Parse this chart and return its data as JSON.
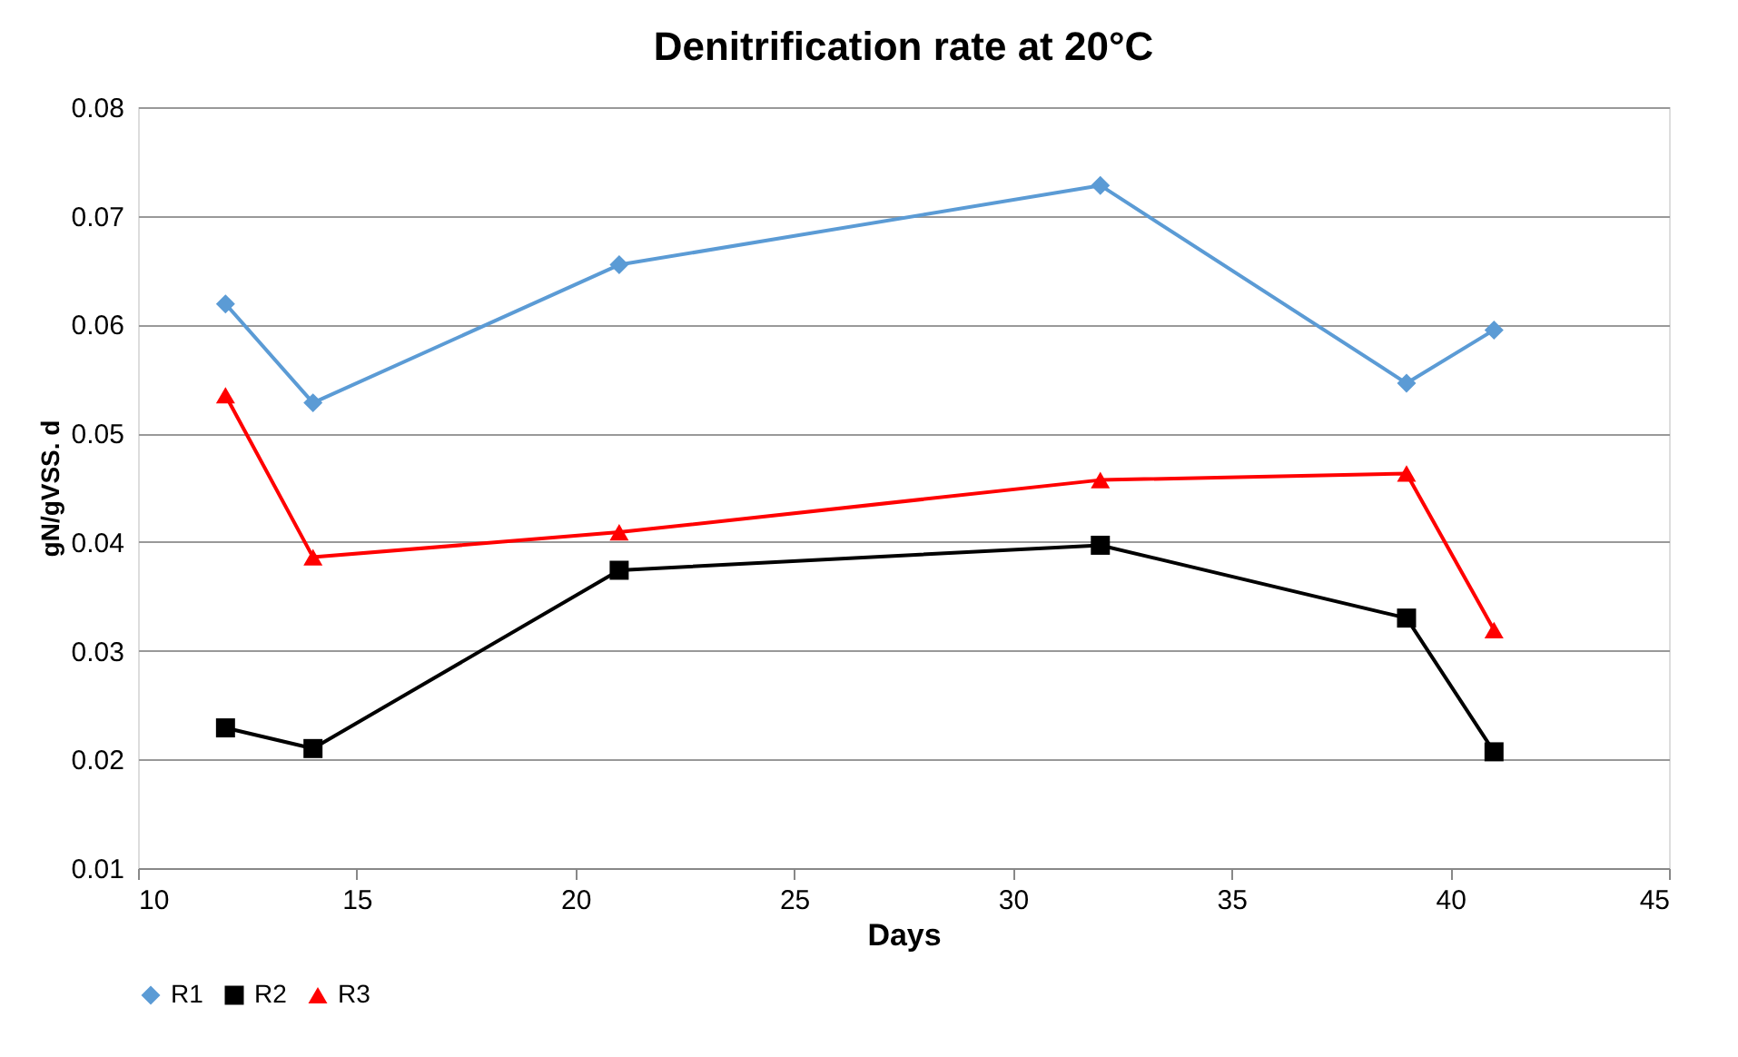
{
  "chart_data": {
    "type": "line",
    "title": "Denitrification rate at 20°C",
    "xlabel": "Days",
    "ylabel": "gN/gVSS. d",
    "x": [
      12,
      14,
      21,
      32,
      39,
      41
    ],
    "series": [
      {
        "name": "R1",
        "color": "#5b9bd5",
        "marker": "diamond",
        "values": [
          0.0619,
          0.0528,
          0.0655,
          0.0728,
          0.0546,
          0.0595
        ]
      },
      {
        "name": "R2",
        "color": "#000000",
        "marker": "square",
        "values": [
          0.0229,
          0.021,
          0.0374,
          0.0397,
          0.033,
          0.0207
        ]
      },
      {
        "name": "R3",
        "color": "#ff0000",
        "marker": "triangle",
        "values": [
          0.0535,
          0.0386,
          0.0409,
          0.0457,
          0.0463,
          0.0319
        ]
      }
    ],
    "xlim": [
      10,
      45
    ],
    "xticks": [
      10,
      15,
      20,
      25,
      30,
      35,
      40,
      45
    ],
    "ylim": [
      0.01,
      0.08
    ],
    "yticks": [
      0.01,
      0.02,
      0.03,
      0.04,
      0.05,
      0.06,
      0.07,
      0.08
    ],
    "grid": "y",
    "legend": "bottom",
    "line_style": "solid"
  }
}
